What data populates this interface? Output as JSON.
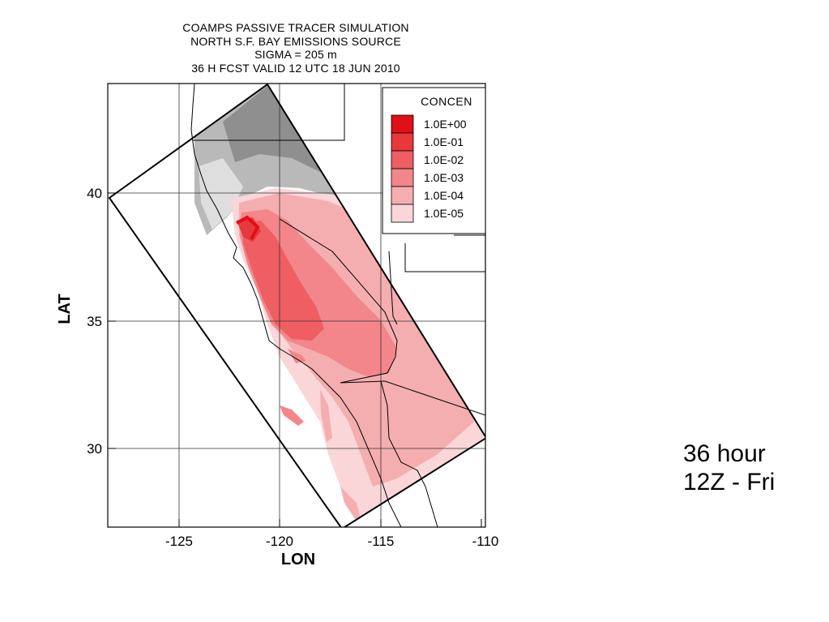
{
  "title_lines": [
    "COAMPS PASSIVE TRACER SIMULATION",
    "NORTH S.F. BAY EMISSIONS SOURCE",
    "SIGMA = 205 m",
    "36 H FCST VALID 12 UTC 18 JUN 2010"
  ],
  "axes": {
    "xlabel": "LON",
    "ylabel": "LAT",
    "x_ticks": [
      "-125",
      "-120",
      "-115",
      "-110"
    ],
    "y_ticks": [
      "40",
      "35",
      "30"
    ],
    "xlim": [
      -128,
      -110
    ],
    "ylim": [
      27,
      44
    ]
  },
  "legend": {
    "title": "CONCEN",
    "placement": "top-right",
    "levels": [
      {
        "label": "1.0E+00",
        "color": "#e01016"
      },
      {
        "label": "1.0E-01",
        "color": "#e8383c"
      },
      {
        "label": "1.0E-02",
        "color": "#ee5e62"
      },
      {
        "label": "1.0E-03",
        "color": "#f2868a"
      },
      {
        "label": "1.0E-04",
        "color": "#f5aeb0"
      },
      {
        "label": "1.0E-05",
        "color": "#fad6d8"
      }
    ]
  },
  "caption": {
    "line1": "36 hour",
    "line2": "12Z - Fri"
  }
}
